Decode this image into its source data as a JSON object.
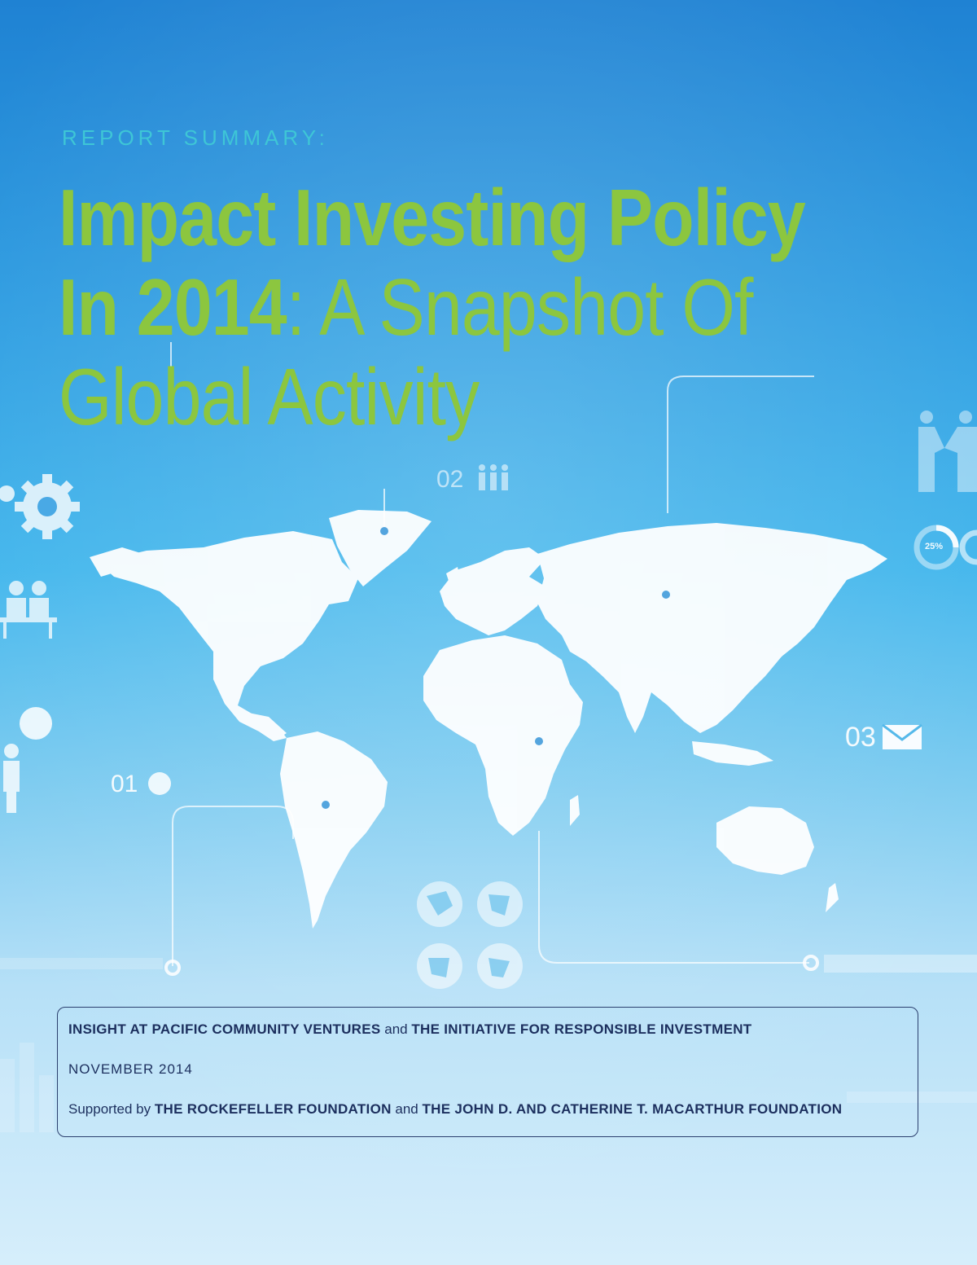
{
  "header": {
    "eyebrow": "REPORT SUMMARY:",
    "title_line1": "Impact Investing Policy",
    "title_line2_bold": "In 2014",
    "title_line2_light": ": A Snapshot Of",
    "title_line3": "Global Activity"
  },
  "graphics": {
    "labels": [
      "02",
      "01",
      "03",
      "25%"
    ],
    "icons": [
      "world-map-icon",
      "gear-icon",
      "people-icon",
      "handshake-icon",
      "person-icon",
      "speech-bubble-icon",
      "globe-icon",
      "envelope-icon",
      "donut-chart-icon"
    ]
  },
  "info_box": {
    "line1_org1": "INSIGHT AT PACIFIC COMMUNITY VENTURES",
    "line1_and": " and ",
    "line1_org2": "THE INITIATIVE FOR RESPONSIBLE INVESTMENT",
    "date": "NOVEMBER 2014",
    "line3_prefix": "Supported by ",
    "line3_org1": "THE ROCKEFELLER FOUNDATION",
    "line3_and": " and ",
    "line3_org2": "THE JOHN D. AND CATHERINE T. MACARTHUR FOUNDATION"
  },
  "colors": {
    "title_green": "#8cc63f",
    "eyebrow_teal": "#3ec6d6",
    "box_text_navy": "#1c2f5e",
    "background_top": "#1f82d3",
    "background_bottom": "#d6eefb"
  }
}
